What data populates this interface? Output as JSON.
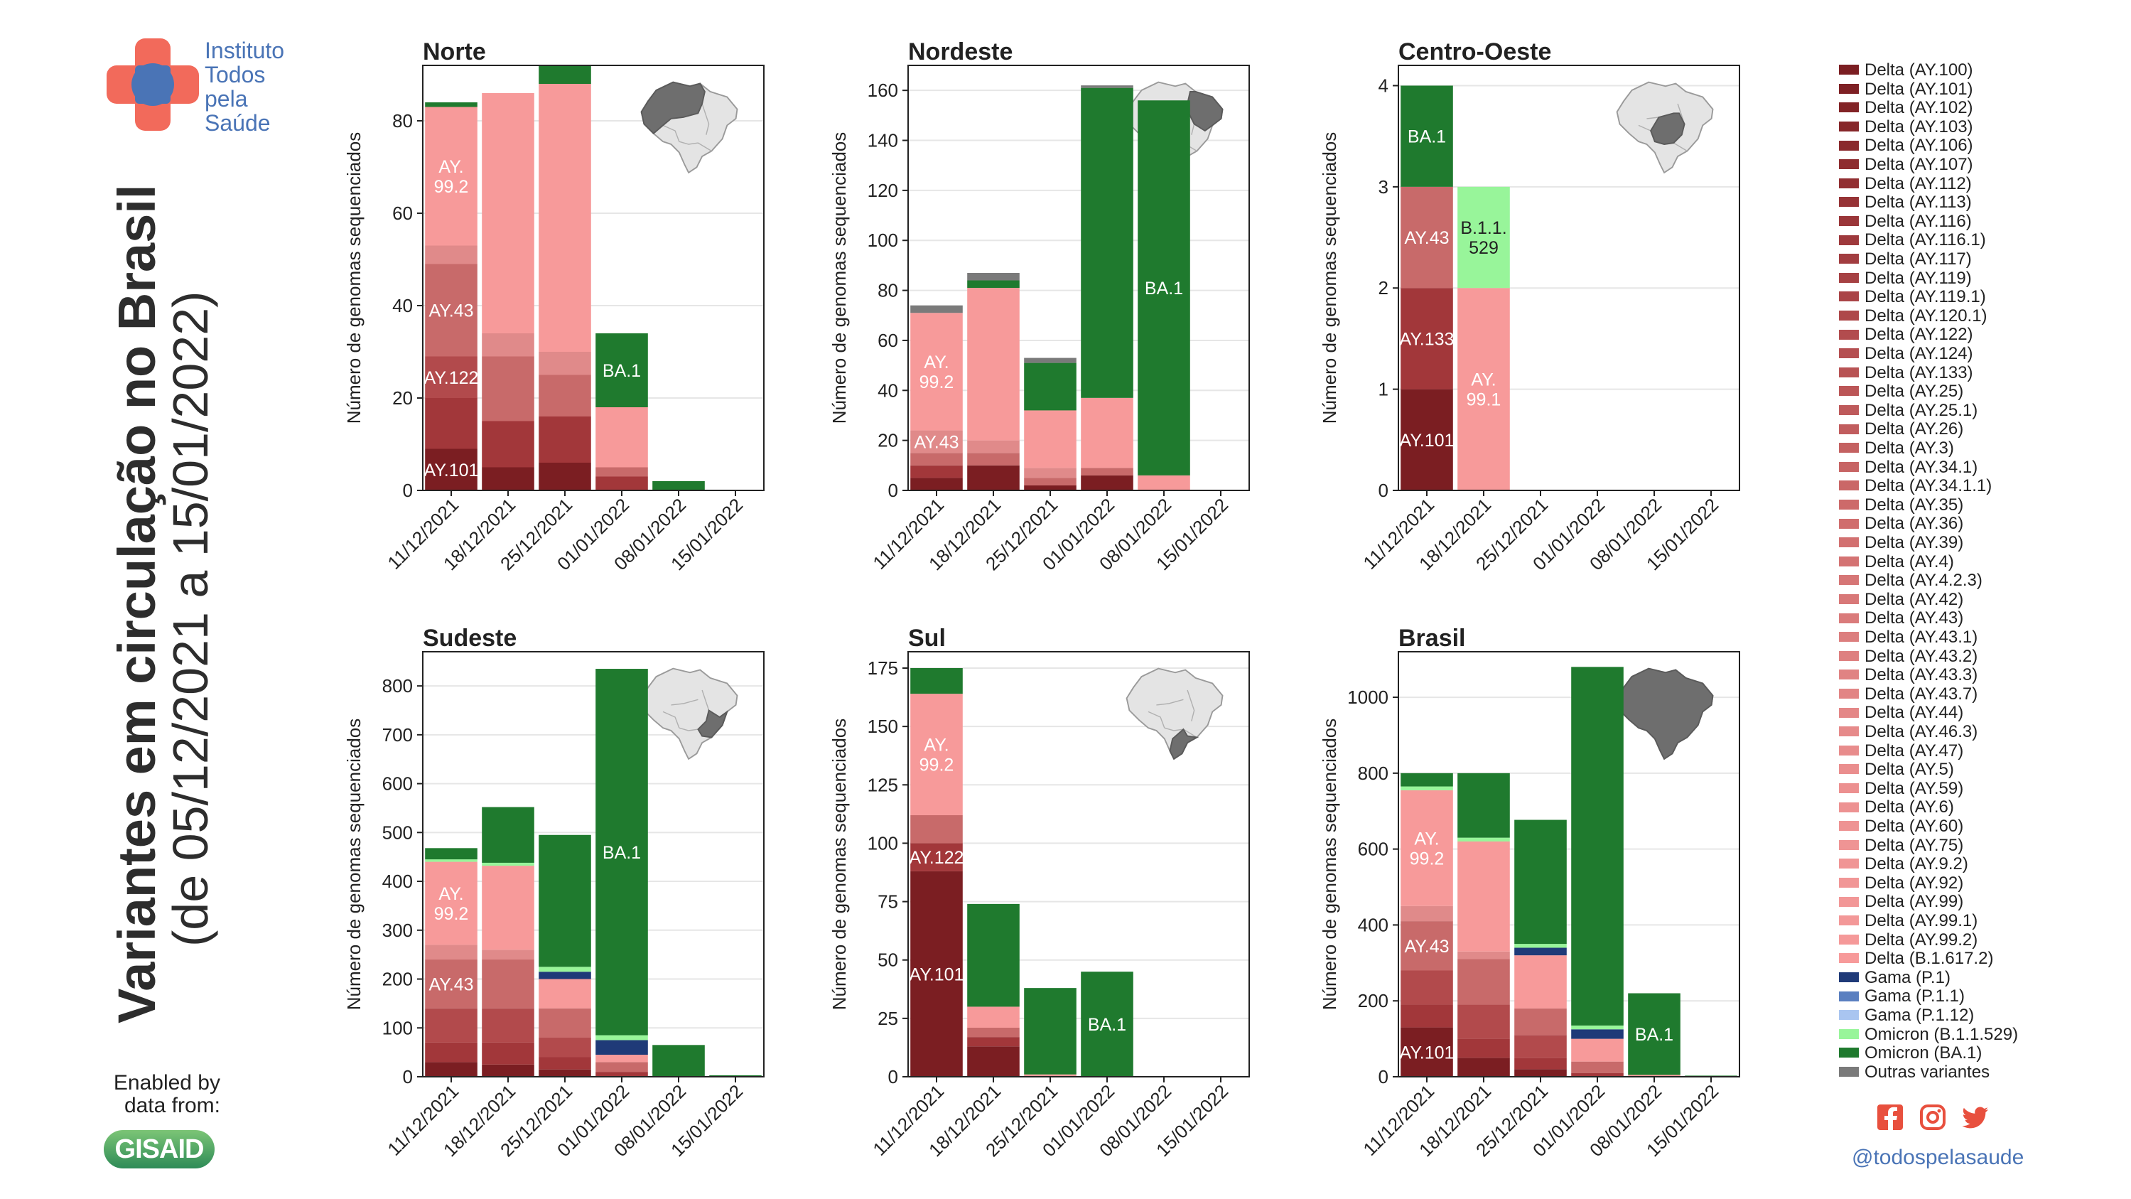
{
  "title_main": "Variantes em circulação no Brasil",
  "title_sub": "(de 05/12/2021 a 15/01/2022)",
  "logo": {
    "line1": "Instituto",
    "line2": "Todos",
    "line3": "pela",
    "line4": "Saúde"
  },
  "enabled_by": {
    "line1": "Enabled by",
    "line2": "data from:"
  },
  "gisaid_logo": "GISAID",
  "social": {
    "handle": "@todospelasaude",
    "icons": [
      "facebook-icon",
      "instagram-icon",
      "twitter-icon"
    ]
  },
  "colors": {
    "delta_dark": "#7b1e22",
    "delta_light": "#f79a9a",
    "gama_p1": "#1f3a78",
    "gama_p11": "#5a7fc0",
    "gama_p112": "#a9c5f0",
    "omicron_b11529": "#98f59a",
    "omicron_ba1": "#1f7a2e",
    "outras": "#7a7a7a"
  },
  "chart_data": [
    {
      "type": "bar",
      "stacked": true,
      "title": "Norte",
      "map": "map-norte-icon",
      "ylabel": "Número de genomas sequenciados",
      "categories": [
        "11/12/2021",
        "18/12/2021",
        "25/12/2021",
        "01/01/2022",
        "08/01/2022",
        "15/01/2022"
      ],
      "ylim": [
        0,
        92
      ],
      "yticks": [
        0,
        20,
        40,
        60,
        80
      ],
      "segments": [
        [
          {
            "v": 9,
            "c": "#7b1e22",
            "label": "AY.101"
          },
          {
            "v": 11,
            "c": "#a2373a"
          },
          {
            "v": 9,
            "c": "#b24a4c",
            "label": "AY.122"
          },
          {
            "v": 20,
            "c": "#c86a6a",
            "label": "AY.43"
          },
          {
            "v": 4,
            "c": "#e08a8a"
          },
          {
            "v": 30,
            "c": "#f79a9a",
            "label": "AY.99.2"
          },
          {
            "v": 1,
            "c": "#1f7a2e"
          }
        ],
        [
          {
            "v": 5,
            "c": "#7b1e22"
          },
          {
            "v": 10,
            "c": "#a2373a"
          },
          {
            "v": 14,
            "c": "#c86a6a"
          },
          {
            "v": 5,
            "c": "#e08a8a"
          },
          {
            "v": 52,
            "c": "#f79a9a"
          }
        ],
        [
          {
            "v": 6,
            "c": "#7b1e22"
          },
          {
            "v": 10,
            "c": "#a2373a"
          },
          {
            "v": 9,
            "c": "#c86a6a"
          },
          {
            "v": 5,
            "c": "#e08a8a"
          },
          {
            "v": 58,
            "c": "#f79a9a"
          },
          {
            "v": 4,
            "c": "#1f7a2e"
          }
        ],
        [
          {
            "v": 3,
            "c": "#a2373a"
          },
          {
            "v": 2,
            "c": "#c86a6a"
          },
          {
            "v": 13,
            "c": "#f79a9a"
          },
          {
            "v": 16,
            "c": "#1f7a2e",
            "label": "BA.1"
          }
        ],
        [
          {
            "v": 2,
            "c": "#1f7a2e"
          }
        ],
        []
      ]
    },
    {
      "type": "bar",
      "stacked": true,
      "title": "Nordeste",
      "map": "map-nordeste-icon",
      "ylabel": "Número de genomas sequenciados",
      "categories": [
        "11/12/2021",
        "18/12/2021",
        "25/12/2021",
        "01/01/2022",
        "08/01/2022",
        "15/01/2022"
      ],
      "ylim": [
        0,
        170
      ],
      "yticks": [
        0,
        20,
        40,
        60,
        80,
        100,
        120,
        140,
        160
      ],
      "segments": [
        [
          {
            "v": 5,
            "c": "#7b1e22"
          },
          {
            "v": 5,
            "c": "#a2373a"
          },
          {
            "v": 5,
            "c": "#c86a6a"
          },
          {
            "v": 9,
            "c": "#e08a8a",
            "label": "AY.43"
          },
          {
            "v": 47,
            "c": "#f79a9a",
            "label": "AY.99.2"
          },
          {
            "v": 3,
            "c": "#7a7a7a"
          }
        ],
        [
          {
            "v": 10,
            "c": "#7b1e22"
          },
          {
            "v": 5,
            "c": "#c86a6a"
          },
          {
            "v": 5,
            "c": "#e08a8a"
          },
          {
            "v": 61,
            "c": "#f79a9a"
          },
          {
            "v": 3,
            "c": "#1f7a2e"
          },
          {
            "v": 3,
            "c": "#7a7a7a"
          }
        ],
        [
          {
            "v": 2,
            "c": "#7b1e22"
          },
          {
            "v": 3,
            "c": "#c86a6a"
          },
          {
            "v": 4,
            "c": "#e08a8a"
          },
          {
            "v": 23,
            "c": "#f79a9a"
          },
          {
            "v": 19,
            "c": "#1f7a2e"
          },
          {
            "v": 2,
            "c": "#7a7a7a"
          }
        ],
        [
          {
            "v": 6,
            "c": "#7b1e22"
          },
          {
            "v": 3,
            "c": "#c86a6a"
          },
          {
            "v": 28,
            "c": "#f79a9a"
          },
          {
            "v": 124,
            "c": "#1f7a2e"
          },
          {
            "v": 1,
            "c": "#7a7a7a"
          }
        ],
        [
          {
            "v": 6,
            "c": "#f79a9a"
          },
          {
            "v": 150,
            "c": "#1f7a2e",
            "label": "BA.1"
          }
        ],
        []
      ]
    },
    {
      "type": "bar",
      "stacked": true,
      "title": "Centro-Oeste",
      "map": "map-centro-oeste-icon",
      "ylabel": "Número de genomas sequenciados",
      "categories": [
        "11/12/2021",
        "18/12/2021",
        "25/12/2021",
        "01/01/2022",
        "08/01/2022",
        "15/01/2022"
      ],
      "ylim": [
        0,
        4.2
      ],
      "yticks": [
        0,
        1,
        2,
        3,
        4
      ],
      "segments": [
        [
          {
            "v": 1,
            "c": "#7b1e22",
            "label": "AY.101"
          },
          {
            "v": 1,
            "c": "#a2373a",
            "label": "AY.133"
          },
          {
            "v": 1,
            "c": "#c86a6a",
            "label": "AY.43"
          },
          {
            "v": 1,
            "c": "#1f7a2e",
            "label": "BA.1"
          }
        ],
        [
          {
            "v": 2,
            "c": "#f79a9a",
            "label": "AY.99.1"
          },
          {
            "v": 1,
            "c": "#98f59a",
            "label": "B.1.1.529",
            "dark": true
          }
        ],
        [],
        [],
        [],
        []
      ]
    },
    {
      "type": "bar",
      "stacked": true,
      "title": "Sudeste",
      "map": "map-sudeste-icon",
      "ylabel": "Número de genomas sequenciados",
      "categories": [
        "11/12/2021",
        "18/12/2021",
        "25/12/2021",
        "01/01/2022",
        "08/01/2022",
        "15/01/2022"
      ],
      "ylim": [
        0,
        870
      ],
      "yticks": [
        0,
        100,
        200,
        300,
        400,
        500,
        600,
        700,
        800
      ],
      "segments": [
        [
          {
            "v": 30,
            "c": "#7b1e22"
          },
          {
            "v": 40,
            "c": "#a2373a"
          },
          {
            "v": 70,
            "c": "#b24a4c"
          },
          {
            "v": 100,
            "c": "#c86a6a",
            "label": "AY.43"
          },
          {
            "v": 30,
            "c": "#e08a8a"
          },
          {
            "v": 170,
            "c": "#f79a9a",
            "label": "AY.99.2"
          },
          {
            "v": 5,
            "c": "#98f59a"
          },
          {
            "v": 23,
            "c": "#1f7a2e"
          }
        ],
        [
          {
            "v": 25,
            "c": "#7b1e22"
          },
          {
            "v": 45,
            "c": "#a2373a"
          },
          {
            "v": 70,
            "c": "#b24a4c"
          },
          {
            "v": 100,
            "c": "#c86a6a"
          },
          {
            "v": 20,
            "c": "#e08a8a"
          },
          {
            "v": 172,
            "c": "#f79a9a"
          },
          {
            "v": 6,
            "c": "#98f59a"
          },
          {
            "v": 114,
            "c": "#1f7a2e"
          }
        ],
        [
          {
            "v": 15,
            "c": "#7b1e22"
          },
          {
            "v": 25,
            "c": "#a2373a"
          },
          {
            "v": 40,
            "c": "#b24a4c"
          },
          {
            "v": 60,
            "c": "#c86a6a"
          },
          {
            "v": 60,
            "c": "#f79a9a"
          },
          {
            "v": 15,
            "c": "#1f3a78"
          },
          {
            "v": 10,
            "c": "#98f59a"
          },
          {
            "v": 270,
            "c": "#1f7a2e"
          }
        ],
        [
          {
            "v": 10,
            "c": "#a2373a"
          },
          {
            "v": 20,
            "c": "#c86a6a"
          },
          {
            "v": 15,
            "c": "#f79a9a"
          },
          {
            "v": 30,
            "c": "#1f3a78"
          },
          {
            "v": 10,
            "c": "#98f59a"
          },
          {
            "v": 750,
            "c": "#1f7a2e",
            "label": "BA.1"
          }
        ],
        [
          {
            "v": 65,
            "c": "#1f7a2e"
          }
        ],
        [
          {
            "v": 3,
            "c": "#1f7a2e"
          }
        ]
      ]
    },
    {
      "type": "bar",
      "stacked": true,
      "title": "Sul",
      "map": "map-sul-icon",
      "ylabel": "Número de genomas sequenciados",
      "categories": [
        "11/12/2021",
        "18/12/2021",
        "25/12/2021",
        "01/01/2022",
        "08/01/2022",
        "15/01/2022"
      ],
      "ylim": [
        0,
        182
      ],
      "yticks": [
        0,
        25,
        50,
        75,
        100,
        125,
        150,
        175
      ],
      "segments": [
        [
          {
            "v": 88,
            "c": "#7b1e22",
            "label": "AY.101"
          },
          {
            "v": 12,
            "c": "#a2373a",
            "label": "AY.122"
          },
          {
            "v": 12,
            "c": "#c86a6a"
          },
          {
            "v": 52,
            "c": "#f79a9a",
            "label": "AY.99.2"
          },
          {
            "v": 11,
            "c": "#1f7a2e"
          }
        ],
        [
          {
            "v": 13,
            "c": "#7b1e22"
          },
          {
            "v": 4,
            "c": "#a2373a"
          },
          {
            "v": 4,
            "c": "#c86a6a"
          },
          {
            "v": 9,
            "c": "#f79a9a"
          },
          {
            "v": 44,
            "c": "#1f7a2e"
          }
        ],
        [
          {
            "v": 1,
            "c": "#f79a9a"
          },
          {
            "v": 37,
            "c": "#1f7a2e"
          }
        ],
        [
          {
            "v": 45,
            "c": "#1f7a2e",
            "label": "BA.1"
          }
        ],
        [],
        []
      ]
    },
    {
      "type": "bar",
      "stacked": true,
      "title": "Brasil",
      "map": "map-brasil-icon",
      "ylabel": "Número de genomas sequenciados",
      "categories": [
        "11/12/2021",
        "18/12/2021",
        "25/12/2021",
        "01/01/2022",
        "08/01/2022",
        "15/01/2022"
      ],
      "ylim": [
        0,
        1120
      ],
      "yticks": [
        0,
        200,
        400,
        600,
        800,
        1000
      ],
      "segments": [
        [
          {
            "v": 130,
            "c": "#7b1e22",
            "label": "AY.101"
          },
          {
            "v": 60,
            "c": "#a2373a"
          },
          {
            "v": 90,
            "c": "#b24a4c"
          },
          {
            "v": 130,
            "c": "#c86a6a",
            "label": "AY.43"
          },
          {
            "v": 40,
            "c": "#e08a8a"
          },
          {
            "v": 305,
            "c": "#f79a9a",
            "label": "AY.99.2"
          },
          {
            "v": 10,
            "c": "#98f59a"
          },
          {
            "v": 35,
            "c": "#1f7a2e"
          }
        ],
        [
          {
            "v": 50,
            "c": "#7b1e22"
          },
          {
            "v": 50,
            "c": "#a2373a"
          },
          {
            "v": 90,
            "c": "#b24a4c"
          },
          {
            "v": 120,
            "c": "#c86a6a"
          },
          {
            "v": 20,
            "c": "#e08a8a"
          },
          {
            "v": 290,
            "c": "#f79a9a"
          },
          {
            "v": 10,
            "c": "#98f59a"
          },
          {
            "v": 170,
            "c": "#1f7a2e"
          }
        ],
        [
          {
            "v": 20,
            "c": "#7b1e22"
          },
          {
            "v": 30,
            "c": "#a2373a"
          },
          {
            "v": 60,
            "c": "#b24a4c"
          },
          {
            "v": 70,
            "c": "#c86a6a"
          },
          {
            "v": 140,
            "c": "#f79a9a"
          },
          {
            "v": 20,
            "c": "#1f3a78"
          },
          {
            "v": 10,
            "c": "#98f59a"
          },
          {
            "v": 327,
            "c": "#1f7a2e"
          }
        ],
        [
          {
            "v": 10,
            "c": "#a2373a"
          },
          {
            "v": 30,
            "c": "#c86a6a"
          },
          {
            "v": 60,
            "c": "#f79a9a"
          },
          {
            "v": 25,
            "c": "#1f3a78"
          },
          {
            "v": 10,
            "c": "#98f59a"
          },
          {
            "v": 945,
            "c": "#1f7a2e"
          }
        ],
        [
          {
            "v": 5,
            "c": "#f79a9a"
          },
          {
            "v": 215,
            "c": "#1f7a2e",
            "label": "BA.1"
          }
        ],
        [
          {
            "v": 3,
            "c": "#1f7a2e"
          }
        ]
      ]
    }
  ],
  "legend": [
    {
      "label": "Delta (AY.100)",
      "color": "#7b1e22"
    },
    {
      "label": "Delta (AY.101)",
      "color": "#7e2024"
    },
    {
      "label": "Delta (AY.102)",
      "color": "#822326"
    },
    {
      "label": "Delta (AY.103)",
      "color": "#862629"
    },
    {
      "label": "Delta (AY.106)",
      "color": "#8a292c"
    },
    {
      "label": "Delta (AY.107)",
      "color": "#8e2c2f"
    },
    {
      "label": "Delta (AY.112)",
      "color": "#922f32"
    },
    {
      "label": "Delta (AY.113)",
      "color": "#963336"
    },
    {
      "label": "Delta (AY.116)",
      "color": "#9a3639"
    },
    {
      "label": "Delta (AY.116.1)",
      "color": "#9e393c"
    },
    {
      "label": "Delta (AY.117)",
      "color": "#a23d40"
    },
    {
      "label": "Delta (AY.119)",
      "color": "#a64143"
    },
    {
      "label": "Delta (AY.119.1)",
      "color": "#aa4447"
    },
    {
      "label": "Delta (AY.120.1)",
      "color": "#ae484a"
    },
    {
      "label": "Delta (AY.122)",
      "color": "#b24c4e"
    },
    {
      "label": "Delta (AY.124)",
      "color": "#b54f51"
    },
    {
      "label": "Delta (AY.133)",
      "color": "#b85354"
    },
    {
      "label": "Delta (AY.25)",
      "color": "#bb5657"
    },
    {
      "label": "Delta (AY.25.1)",
      "color": "#be5a5b"
    },
    {
      "label": "Delta (AY.26)",
      "color": "#c15d5e"
    },
    {
      "label": "Delta (AY.3)",
      "color": "#c46161"
    },
    {
      "label": "Delta (AY.34.1)",
      "color": "#c76464"
    },
    {
      "label": "Delta (AY.34.1.1)",
      "color": "#ca6767"
    },
    {
      "label": "Delta (AY.35)",
      "color": "#cd6a6a"
    },
    {
      "label": "Delta (AY.36)",
      "color": "#d06d6d"
    },
    {
      "label": "Delta (AY.39)",
      "color": "#d27070"
    },
    {
      "label": "Delta (AY.4)",
      "color": "#d47373"
    },
    {
      "label": "Delta (AY.4.2.3)",
      "color": "#d67676"
    },
    {
      "label": "Delta (AY.42)",
      "color": "#d87878"
    },
    {
      "label": "Delta (AY.43)",
      "color": "#da7b7b"
    },
    {
      "label": "Delta (AY.43.1)",
      "color": "#dc7e7e"
    },
    {
      "label": "Delta (AY.43.2)",
      "color": "#de8080"
    },
    {
      "label": "Delta (AY.43.3)",
      "color": "#e08383"
    },
    {
      "label": "Delta (AY.43.7)",
      "color": "#e28585"
    },
    {
      "label": "Delta (AY.44)",
      "color": "#e48787"
    },
    {
      "label": "Delta (AY.46.3)",
      "color": "#e68a8a"
    },
    {
      "label": "Delta (AY.47)",
      "color": "#e88c8c"
    },
    {
      "label": "Delta (AY.5)",
      "color": "#ea8e8e"
    },
    {
      "label": "Delta (AY.59)",
      "color": "#ec9090"
    },
    {
      "label": "Delta (AY.6)",
      "color": "#ed9292"
    },
    {
      "label": "Delta (AY.60)",
      "color": "#ee9393"
    },
    {
      "label": "Delta (AY.75)",
      "color": "#ef9494"
    },
    {
      "label": "Delta (AY.9.2)",
      "color": "#f09595"
    },
    {
      "label": "Delta (AY.92)",
      "color": "#f19696"
    },
    {
      "label": "Delta (AY.99)",
      "color": "#f29797"
    },
    {
      "label": "Delta (AY.99.1)",
      "color": "#f39898"
    },
    {
      "label": "Delta (AY.99.2)",
      "color": "#f59999"
    },
    {
      "label": "Delta (B.1.617.2)",
      "color": "#f79a9a"
    },
    {
      "label": "Gama (P.1)",
      "color": "#1f3a78"
    },
    {
      "label": "Gama (P.1.1)",
      "color": "#5a7fc0"
    },
    {
      "label": "Gama (P.1.12)",
      "color": "#a9c5f0"
    },
    {
      "label": "Omicron (B.1.1.529)",
      "color": "#98f59a"
    },
    {
      "label": "Omicron (BA.1)",
      "color": "#1f7a2e"
    },
    {
      "label": "Outras variantes",
      "color": "#7a7a7a"
    }
  ]
}
